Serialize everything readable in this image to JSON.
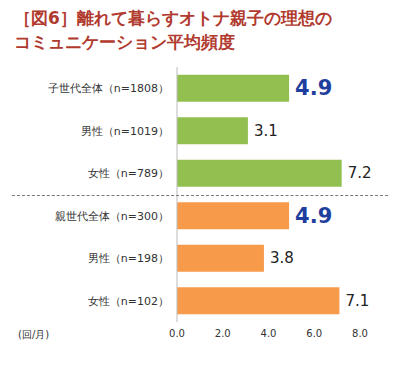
{
  "chart_data": {
    "type": "bar",
    "orientation": "horizontal",
    "title": "［図6］離れて暮らすオトナ親子の理想の\nコミュニケーション平均頻度",
    "x_label": "(回/月)",
    "categories": [
      "子世代全体（n=1808）",
      "男性（n=1019）",
      "女性（n=789）",
      "親世代全体（n=300）",
      "男性（n=198）",
      "女性（n=102）"
    ],
    "values": [
      4.9,
      3.1,
      7.2,
      4.9,
      3.8,
      7.1
    ],
    "colors": [
      "#92c050",
      "#92c050",
      "#92c050",
      "#f79a4a",
      "#f79a4a",
      "#f79a4a"
    ],
    "xlim": [
      0,
      8
    ],
    "xticks": [
      {
        "value": 0,
        "label": "0.0"
      },
      {
        "value": 2,
        "label": "2.0"
      },
      {
        "value": 4,
        "label": "4.0"
      },
      {
        "value": 6,
        "label": "6.0"
      },
      {
        "value": 8,
        "label": "8.0"
      }
    ],
    "grid": false,
    "data_labels": true
  }
}
